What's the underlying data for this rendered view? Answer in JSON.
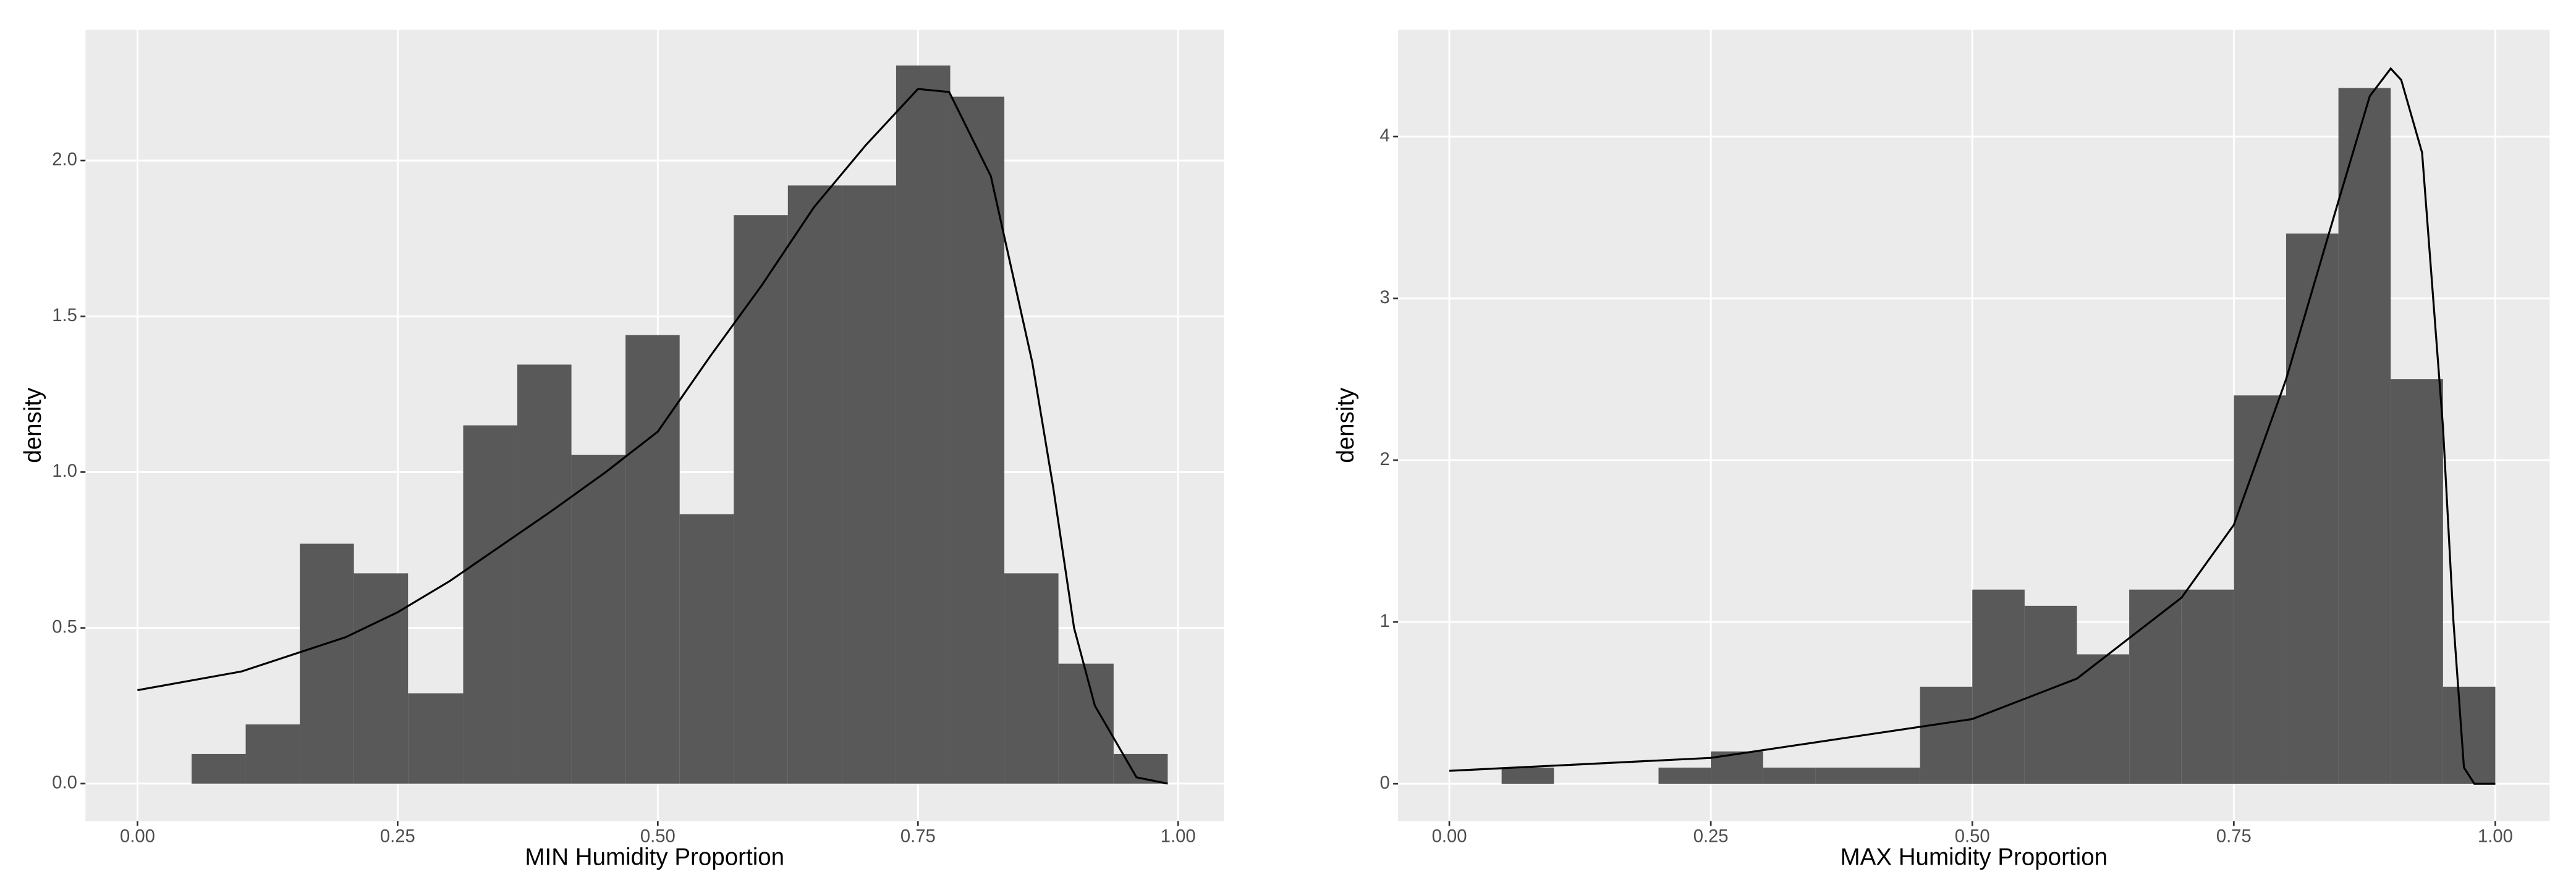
{
  "chart_data": [
    {
      "type": "histogram",
      "x_label": "MIN Humidity Proportion",
      "y_label": "density",
      "bins": [
        0.052,
        0.104,
        0.156,
        0.208,
        0.26,
        0.313,
        0.365,
        0.417,
        0.469,
        0.521,
        0.573,
        0.625,
        0.677,
        0.729,
        0.781,
        0.833,
        0.885,
        0.938,
        0.99
      ],
      "values": [
        0.095,
        0.19,
        0.77,
        0.675,
        0.29,
        1.15,
        1.345,
        1.055,
        1.44,
        0.865,
        1.825,
        1.92,
        1.92,
        2.305,
        2.205,
        0.675,
        0.385,
        0.095
      ],
      "color": "#595959",
      "density_curve": {
        "color": "#000000",
        "x": [
          0,
          0.1,
          0.2,
          0.25,
          0.3,
          0.4,
          0.45,
          0.5,
          0.55,
          0.6,
          0.65,
          0.7,
          0.75,
          0.78,
          0.82,
          0.86,
          0.88,
          0.9,
          0.92,
          0.96,
          0.99
        ],
        "y": [
          0.3,
          0.36,
          0.47,
          0.55,
          0.65,
          0.88,
          1.0,
          1.13,
          1.37,
          1.6,
          1.85,
          2.05,
          2.23,
          2.22,
          1.95,
          1.35,
          0.95,
          0.5,
          0.25,
          0.02,
          0
        ]
      },
      "xlim": [
        -0.05,
        1.044
      ],
      "ylim": [
        -0.12,
        2.42
      ],
      "xticks": [
        {
          "value": 0,
          "label": "0.00"
        },
        {
          "value": 0.25,
          "label": "0.25"
        },
        {
          "value": 0.5,
          "label": "0.50"
        },
        {
          "value": 0.75,
          "label": "0.75"
        },
        {
          "value": 1,
          "label": "1.00"
        }
      ],
      "yticks": [
        {
          "value": 0,
          "label": "0.0"
        },
        0.5,
        {
          "value": 1,
          "label": "1.0"
        },
        1.5,
        {
          "value": 2,
          "label": "2.0"
        }
      ],
      "grid": true
    },
    {
      "type": "histogram",
      "x_label": "MAX Humidity Proportion",
      "y_label": "density",
      "bins": [
        0.05,
        0.1,
        0.15,
        0.2,
        0.25,
        0.3,
        0.35,
        0.4,
        0.45,
        0.5,
        0.55,
        0.6,
        0.65,
        0.7,
        0.75,
        0.8,
        0.85,
        0.9,
        0.95,
        1.0
      ],
      "values": [
        0.1,
        0,
        0,
        0.1,
        0.2,
        0.1,
        0.1,
        0.1,
        0.6,
        1.2,
        1.1,
        0.8,
        1.2,
        1.2,
        2.4,
        3.4,
        4.3,
        2.5,
        0.6
      ],
      "color": "#595959",
      "density_curve": {
        "color": "#000000",
        "x": [
          0,
          0.25,
          0.5,
          0.6,
          0.7,
          0.75,
          0.8,
          0.85,
          0.88,
          0.9,
          0.91,
          0.93,
          0.95,
          0.96,
          0.97,
          0.98,
          1.0
        ],
        "y": [
          0.08,
          0.16,
          0.4,
          0.65,
          1.15,
          1.6,
          2.5,
          3.6,
          4.25,
          4.42,
          4.35,
          3.9,
          2.2,
          1.0,
          0.1,
          0,
          0
        ]
      },
      "xlim": [
        -0.049,
        1.052
      ],
      "ylim": [
        -0.23,
        4.66
      ],
      "xticks": [
        {
          "value": 0,
          "label": "0.00"
        },
        {
          "value": 0.25,
          "label": "0.25"
        },
        {
          "value": 0.5,
          "label": "0.50"
        },
        {
          "value": 0.75,
          "label": "0.75"
        },
        {
          "value": 1,
          "label": "1.00"
        }
      ],
      "yticks": [
        0,
        1,
        2,
        3,
        4
      ],
      "grid": true
    }
  ]
}
